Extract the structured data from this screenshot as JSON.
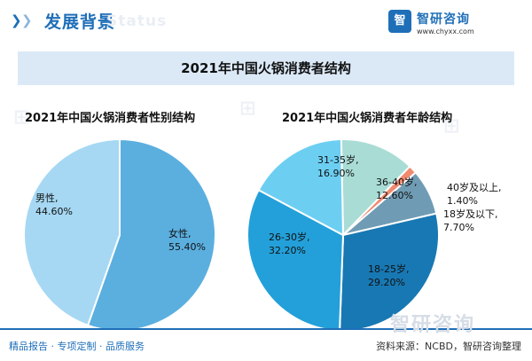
{
  "header": {
    "section_title": "发展背景",
    "ghost_text": "Status",
    "brand_name": "智研咨询",
    "brand_logo_text": "智",
    "brand_url": "www.chyxx.com"
  },
  "main_title": "2021年中国火锅消费者结构",
  "chart_data": [
    {
      "type": "pie",
      "title": "2021年中国火锅消费者性别结构",
      "slices": [
        {
          "label": "女性,",
          "value_text": "55.40%",
          "value": 55.4,
          "color": "#5bafdf"
        },
        {
          "label": "男性,",
          "value_text": "44.60%",
          "value": 44.6,
          "color": "#a6d8f3"
        }
      ]
    },
    {
      "type": "pie",
      "title": "2021年中国火锅消费者年龄结构",
      "slices": [
        {
          "label": "36-40岁,",
          "value_text": "12.60%",
          "value": 12.6,
          "color": "#a9dcd5"
        },
        {
          "label": "40岁及以上,",
          "value_text": "1.40%",
          "value": 1.4,
          "color": "#f08a6f"
        },
        {
          "label": "18岁及以下,",
          "value_text": "7.70%",
          "value": 7.7,
          "color": "#6f9cb4"
        },
        {
          "label": "18-25岁,",
          "value_text": "29.20%",
          "value": 29.2,
          "color": "#1878b3"
        },
        {
          "label": "26-30岁,",
          "value_text": "32.20%",
          "value": 32.2,
          "color": "#23a0d9"
        },
        {
          "label": "31-35岁,",
          "value_text": "16.90%",
          "value": 16.9,
          "color": "#6ccff2"
        }
      ]
    }
  ],
  "footer": {
    "left_text": "精品报告 · 专项定制 · 品质服务",
    "source_text": "资料来源：NCBD，智研咨询整理",
    "brand_watermark": "智研咨询"
  }
}
